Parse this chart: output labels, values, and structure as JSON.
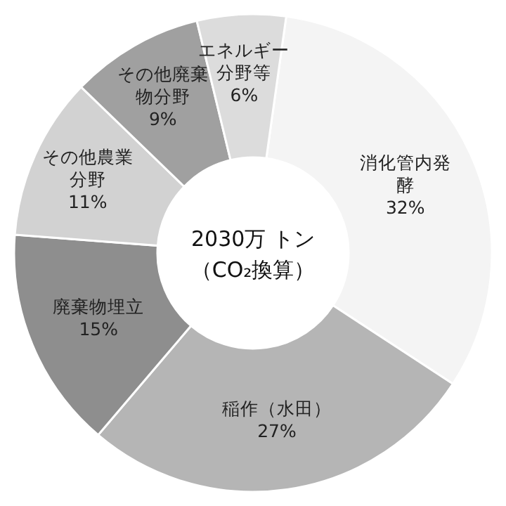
{
  "chart_data": {
    "type": "donut",
    "categories": [
      "消化管内発酵",
      "稲作（水田）",
      "廃棄物埋立",
      "その他農業分野",
      "その他廃棄物分野",
      "エネルギー分野等"
    ],
    "values": [
      32,
      27,
      15,
      11,
      9,
      6
    ],
    "colors": [
      "#f4f4f4",
      "#b5b5b5",
      "#8e8e8e",
      "#d2d2d2",
      "#a0a0a0",
      "#dcdcdc"
    ],
    "value_labels": [
      "32%",
      "27%",
      "15%",
      "11%",
      "9%",
      "6%"
    ],
    "annotations": [
      "2030万 トン",
      "（CO₂換算）"
    ]
  }
}
